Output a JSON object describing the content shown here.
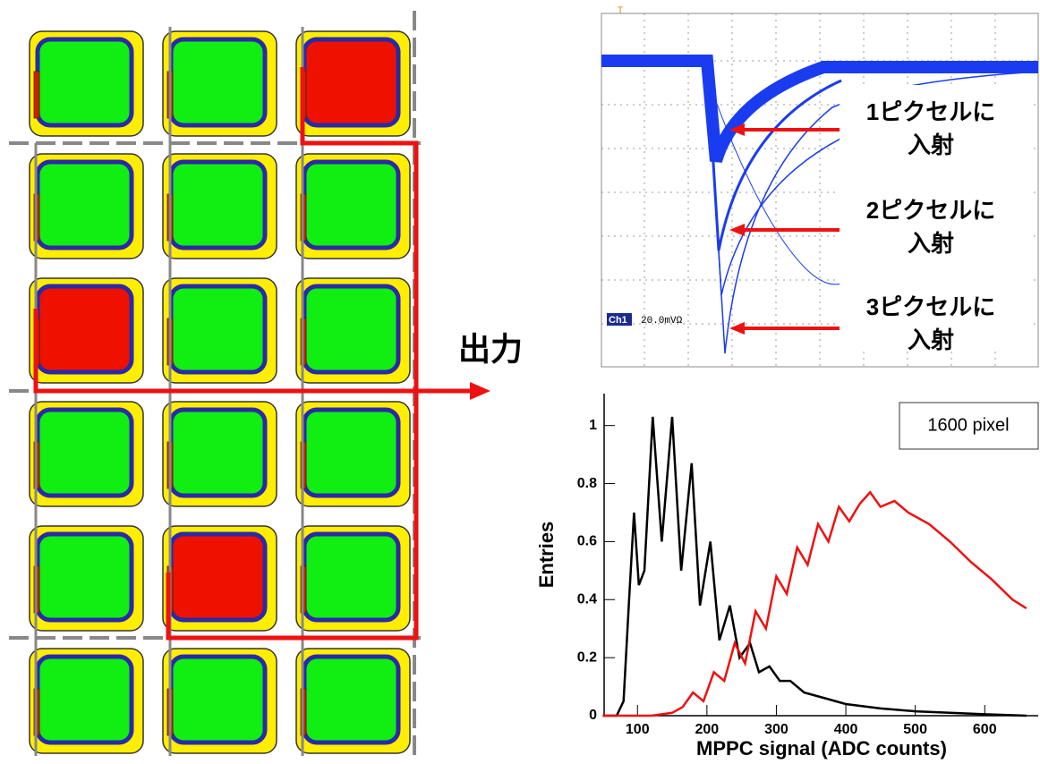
{
  "pixel_grid": {
    "rows": 6,
    "cols": 3,
    "hit": [
      [
        0,
        2
      ],
      [
        2,
        0
      ],
      [
        4,
        1
      ]
    ],
    "hit_color": "#ee1100",
    "idle_color": "#11ee11"
  },
  "output_label": "出力",
  "scope": {
    "channel": "Ch1",
    "scale": "20.0mVΩ",
    "labels": [
      {
        "line1": "1ピクセルに",
        "line2": "入射"
      },
      {
        "line1": "2ピクセルに",
        "line2": "入射"
      },
      {
        "line1": "3ピクセルに",
        "line2": "入射"
      }
    ]
  },
  "histogram": {
    "type": "line",
    "legend": "1600 pixel",
    "x_label": "MPPC signal (ADC counts)",
    "y_label": "Entries",
    "xlim": [
      52,
      677
    ],
    "ylim": [
      0,
      1.11
    ],
    "xticks": [
      100,
      200,
      300,
      400,
      500,
      600
    ],
    "yticks": [
      0,
      0.2,
      0.4,
      0.6,
      0.8,
      1
    ],
    "series": [
      {
        "color": "#000000",
        "x": [
          50,
          70,
          80,
          88,
          95,
          102,
          110,
          122,
          135,
          150,
          163,
          178,
          190,
          205,
          218,
          233,
          247,
          262,
          275,
          290,
          305,
          320,
          340,
          370,
          400,
          450,
          500,
          550,
          600,
          660
        ],
        "values": [
          0,
          0,
          0.05,
          0.4,
          0.7,
          0.45,
          0.5,
          1.03,
          0.6,
          1.03,
          0.5,
          0.87,
          0.38,
          0.6,
          0.26,
          0.38,
          0.2,
          0.25,
          0.15,
          0.17,
          0.12,
          0.12,
          0.08,
          0.06,
          0.04,
          0.025,
          0.015,
          0.01,
          0.005,
          0
        ]
      },
      {
        "color": "#ee1111",
        "x": [
          50,
          120,
          150,
          165,
          180,
          195,
          210,
          225,
          240,
          255,
          270,
          285,
          300,
          315,
          330,
          345,
          360,
          375,
          390,
          405,
          420,
          435,
          450,
          470,
          490,
          520,
          550,
          580,
          610,
          640,
          660
        ],
        "values": [
          0,
          0,
          0.01,
          0.03,
          0.08,
          0.05,
          0.15,
          0.12,
          0.25,
          0.18,
          0.36,
          0.3,
          0.48,
          0.42,
          0.58,
          0.52,
          0.66,
          0.6,
          0.72,
          0.67,
          0.73,
          0.77,
          0.72,
          0.74,
          0.7,
          0.66,
          0.6,
          0.53,
          0.47,
          0.4,
          0.37
        ]
      }
    ]
  }
}
